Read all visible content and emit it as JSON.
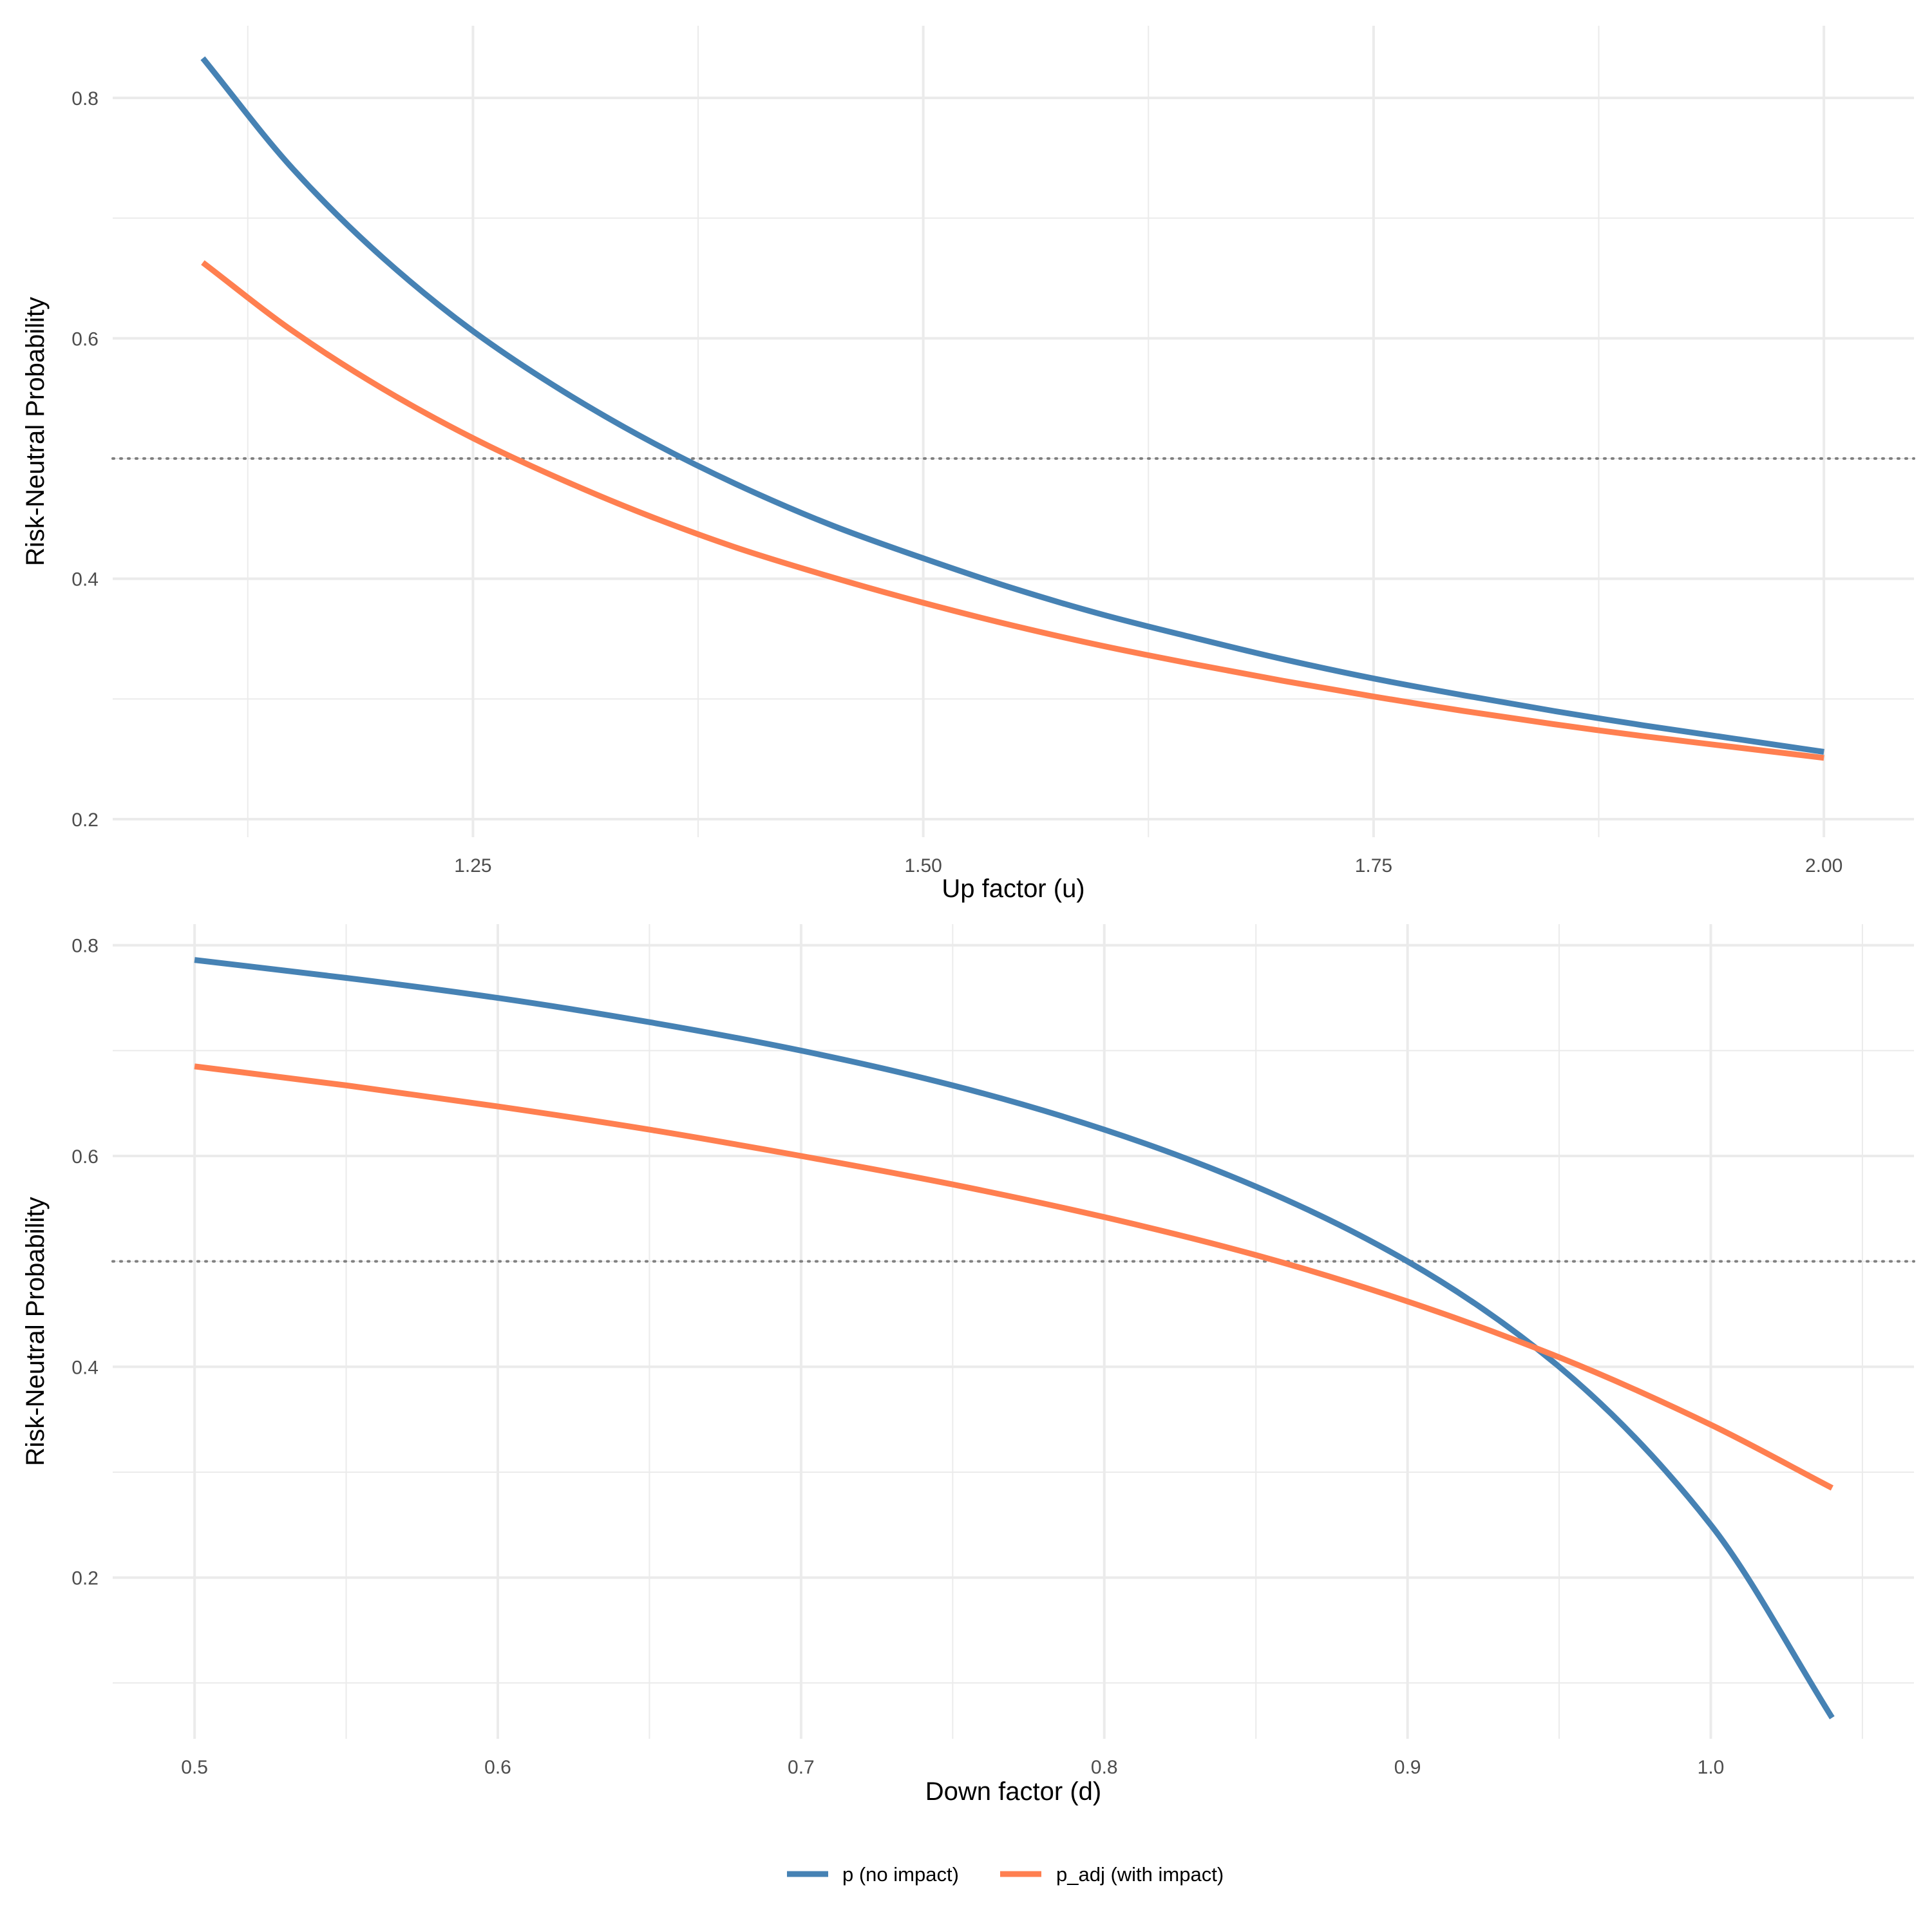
{
  "chart_data": [
    {
      "type": "line",
      "xlabel": "Up factor (u)",
      "ylabel": "Risk-Neutral Probability",
      "xlim": [
        1.05,
        2.05
      ],
      "ylim": [
        0.185,
        0.86
      ],
      "x_ticks": [
        1.25,
        1.5,
        1.75,
        2.0
      ],
      "x_tick_labels": [
        "1.25",
        "1.50",
        "1.75",
        "2.00"
      ],
      "y_ticks": [
        0.2,
        0.4,
        0.6,
        0.8
      ],
      "y_tick_labels": [
        "0.2",
        "0.4",
        "0.6",
        "0.8"
      ],
      "reference_line": {
        "y": 0.5,
        "style": "dotted"
      },
      "grid": true,
      "series": [
        {
          "name": "p (no impact)",
          "color": "#4682B4",
          "x": [
            1.1,
            1.15,
            1.2,
            1.25,
            1.3,
            1.35,
            1.4,
            1.45,
            1.5,
            1.55,
            1.6,
            1.65,
            1.7,
            1.75,
            1.8,
            1.85,
            1.9,
            1.95,
            2.0
          ],
          "y": [
            0.833,
            0.741,
            0.667,
            0.606,
            0.556,
            0.513,
            0.476,
            0.444,
            0.417,
            0.392,
            0.37,
            0.351,
            0.333,
            0.317,
            0.303,
            0.29,
            0.278,
            0.267,
            0.256
          ]
        },
        {
          "name": "p_adj (with impact)",
          "color": "#FF7F50",
          "x": [
            1.1,
            1.15,
            1.2,
            1.25,
            1.3,
            1.35,
            1.4,
            1.45,
            1.5,
            1.55,
            1.6,
            1.65,
            1.7,
            1.75,
            1.8,
            1.85,
            1.9,
            1.95,
            2.0
          ],
          "y": [
            0.663,
            0.606,
            0.558,
            0.517,
            0.482,
            0.451,
            0.424,
            0.401,
            0.38,
            0.361,
            0.344,
            0.329,
            0.315,
            0.302,
            0.29,
            0.279,
            0.269,
            0.26,
            0.251
          ]
        }
      ]
    },
    {
      "type": "line",
      "xlabel": "Down factor (d)",
      "ylabel": "Risk-Neutral Probability",
      "xlim": [
        0.473,
        1.067
      ],
      "ylim": [
        0.047,
        0.82
      ],
      "x_ticks": [
        0.5,
        0.6,
        0.7,
        0.8,
        0.9,
        1.0
      ],
      "x_tick_labels": [
        "0.5",
        "0.6",
        "0.7",
        "0.8",
        "0.9",
        "1.0"
      ],
      "y_ticks": [
        0.2,
        0.4,
        0.6,
        0.8
      ],
      "y_tick_labels": [
        "0.2",
        "0.4",
        "0.6",
        "0.8"
      ],
      "reference_line": {
        "y": 0.5,
        "style": "dotted"
      },
      "grid": true,
      "series": [
        {
          "name": "p (no impact)",
          "color": "#4682B4",
          "x": [
            0.5,
            0.55,
            0.6,
            0.65,
            0.7,
            0.75,
            0.8,
            0.85,
            0.9,
            0.95,
            1.0,
            1.04
          ],
          "y": [
            0.786,
            0.769,
            0.75,
            0.727,
            0.7,
            0.667,
            0.625,
            0.571,
            0.5,
            0.4,
            0.25,
            0.067
          ]
        },
        {
          "name": "p_adj (with impact)",
          "color": "#FF7F50",
          "x": [
            0.5,
            0.55,
            0.6,
            0.65,
            0.7,
            0.75,
            0.8,
            0.85,
            0.9,
            0.95,
            1.0,
            1.04
          ],
          "y": [
            0.685,
            0.667,
            0.647,
            0.625,
            0.6,
            0.573,
            0.542,
            0.506,
            0.462,
            0.409,
            0.345,
            0.285
          ]
        }
      ]
    }
  ],
  "legend": {
    "placement": "bottom",
    "items": [
      {
        "label": "p (no impact)",
        "color": "#4682B4"
      },
      {
        "label": "p_adj (with impact)",
        "color": "#FF7F50"
      }
    ]
  }
}
